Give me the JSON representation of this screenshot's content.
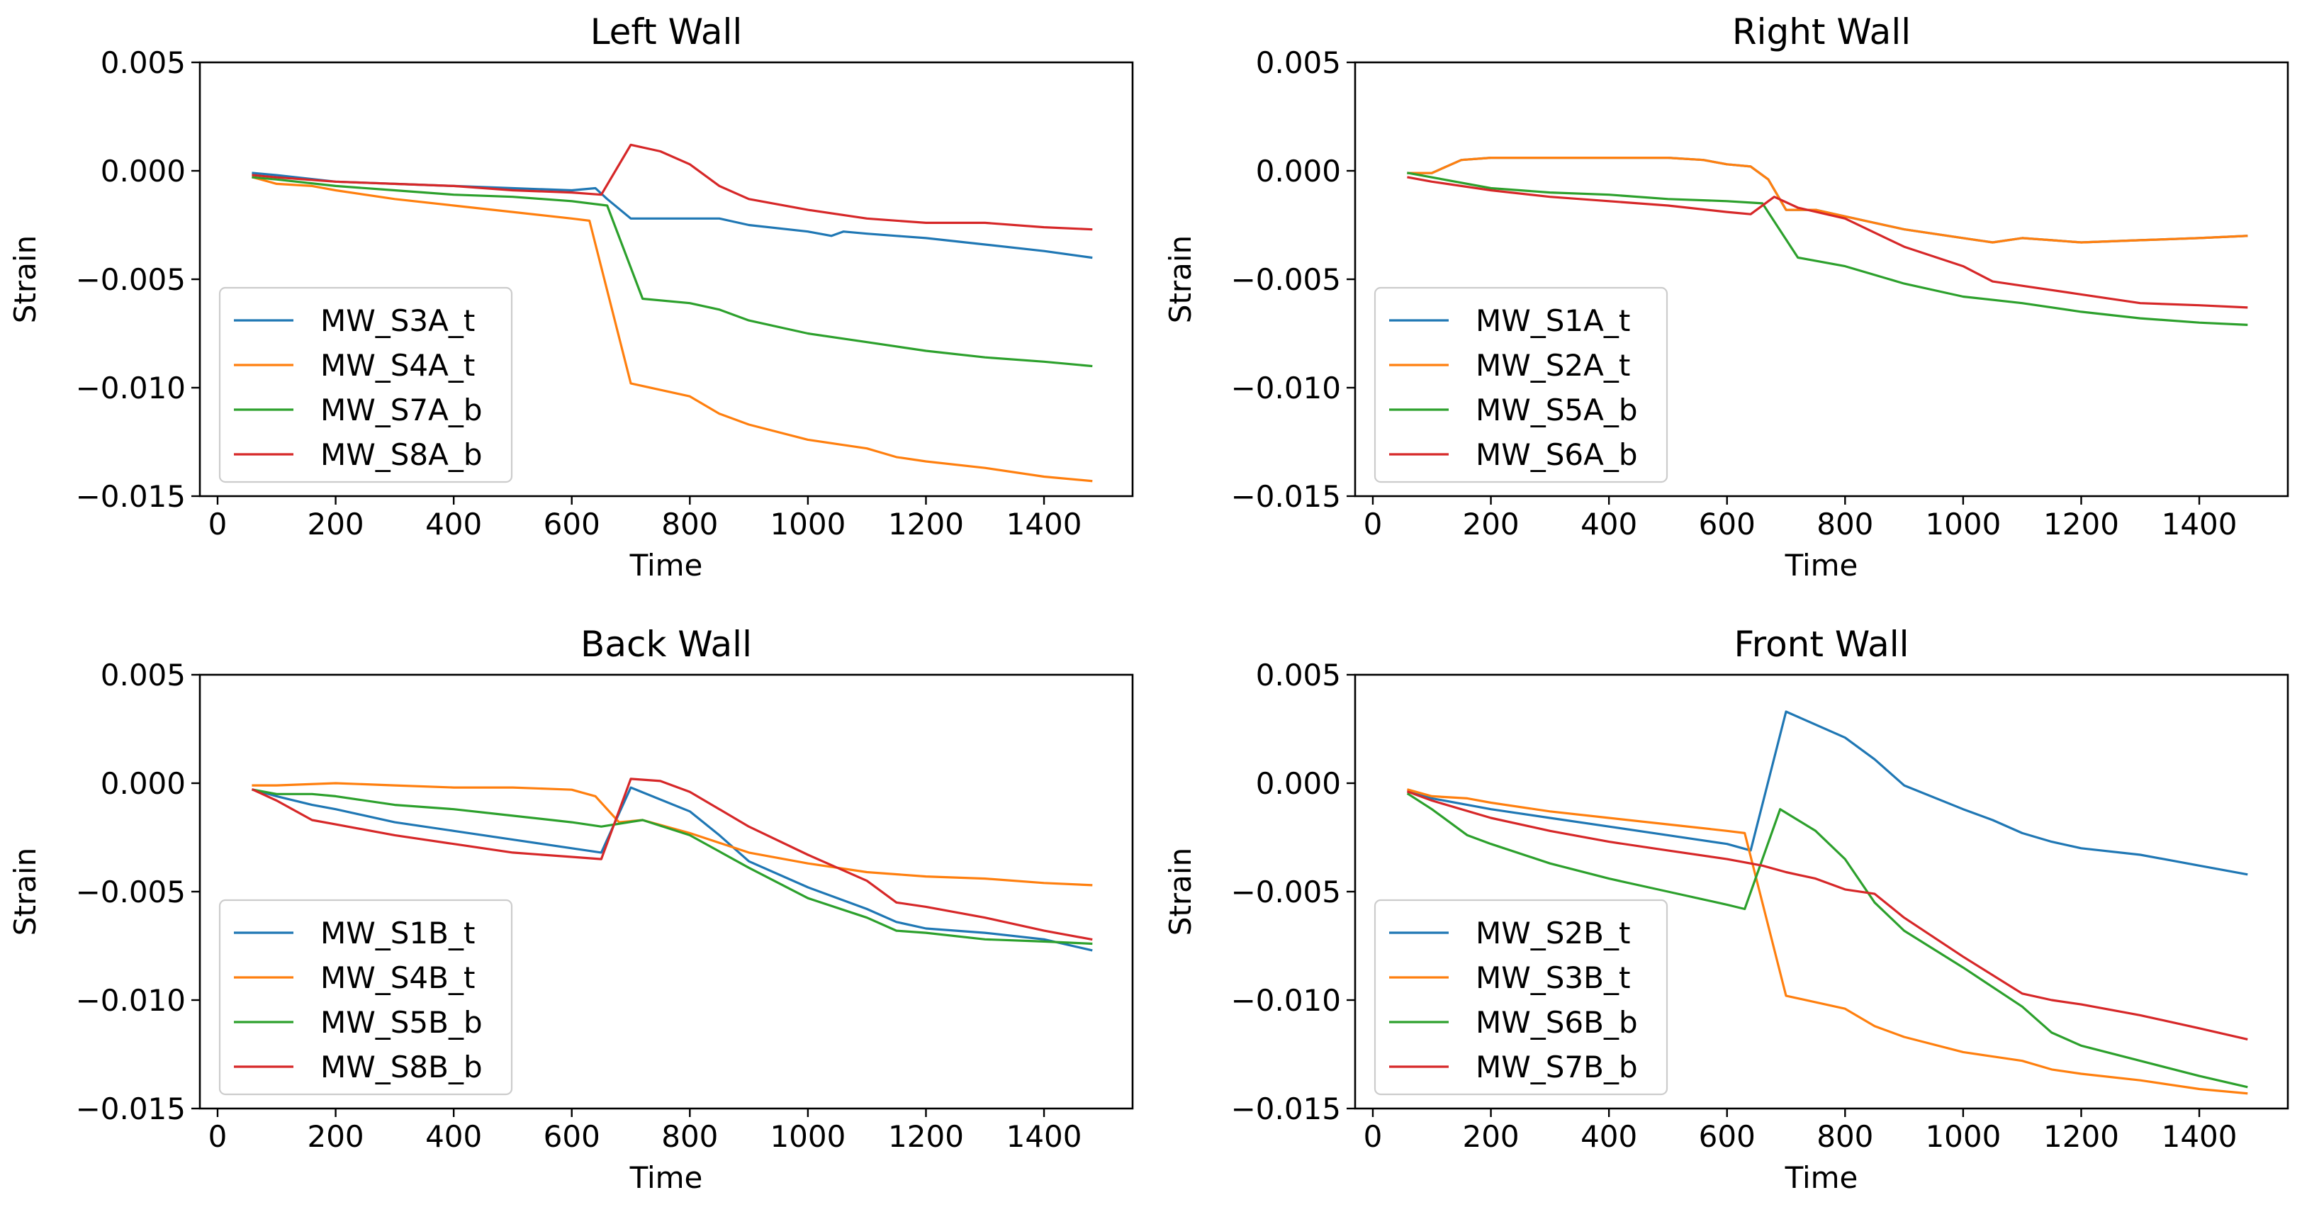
{
  "chart_data": [
    {
      "type": "line",
      "title": "Left Wall",
      "xlabel": "Time",
      "ylabel": "Strain",
      "xlim": [
        -30,
        1550
      ],
      "ylim": [
        -0.015,
        0.005
      ],
      "xticks": [
        0,
        200,
        400,
        600,
        800,
        1000,
        1200,
        1400
      ],
      "xtick_labels": [
        "0",
        "200",
        "400",
        "600",
        "800",
        "1000",
        "1200",
        "1400"
      ],
      "yticks": [
        0.005,
        0.0,
        -0.005,
        -0.01,
        -0.015
      ],
      "ytick_labels": [
        "0.005",
        "0.000",
        "−0.005",
        "−0.010",
        "−0.015"
      ],
      "grid": false,
      "legend_position": "lower-left",
      "series": [
        {
          "name": "MW_S3A_t",
          "color": "#1f77b4",
          "x": [
            60,
            100,
            200,
            300,
            400,
            500,
            600,
            640,
            660,
            700,
            800,
            850,
            900,
            1000,
            1040,
            1060,
            1100,
            1150,
            1200,
            1300,
            1400,
            1480
          ],
          "y": [
            -0.0001,
            -0.0002,
            -0.0005,
            -0.0006,
            -0.0007,
            -0.0008,
            -0.0009,
            -0.0008,
            -0.0013,
            -0.0022,
            -0.0022,
            -0.0022,
            -0.0025,
            -0.0028,
            -0.003,
            -0.0028,
            -0.0029,
            -0.003,
            -0.0031,
            -0.0034,
            -0.0037,
            -0.004
          ]
        },
        {
          "name": "MW_S4A_t",
          "color": "#ff7f0e",
          "x": [
            60,
            100,
            160,
            200,
            300,
            400,
            500,
            600,
            630,
            700,
            800,
            850,
            900,
            1000,
            1050,
            1100,
            1150,
            1200,
            1300,
            1400,
            1480
          ],
          "y": [
            -0.0003,
            -0.0006,
            -0.0007,
            -0.0009,
            -0.0013,
            -0.0016,
            -0.0019,
            -0.0022,
            -0.0023,
            -0.0098,
            -0.0104,
            -0.0112,
            -0.0117,
            -0.0124,
            -0.0126,
            -0.0128,
            -0.0132,
            -0.0134,
            -0.0137,
            -0.0141,
            -0.0143
          ]
        },
        {
          "name": "MW_S7A_b",
          "color": "#2ca02c",
          "x": [
            60,
            100,
            200,
            300,
            400,
            500,
            600,
            660,
            720,
            800,
            850,
            900,
            1000,
            1100,
            1200,
            1300,
            1400,
            1480
          ],
          "y": [
            -0.0003,
            -0.0004,
            -0.0007,
            -0.0009,
            -0.0011,
            -0.0012,
            -0.0014,
            -0.0016,
            -0.0059,
            -0.0061,
            -0.0064,
            -0.0069,
            -0.0075,
            -0.0079,
            -0.0083,
            -0.0086,
            -0.0088,
            -0.009
          ]
        },
        {
          "name": "MW_S8A_b",
          "color": "#d62728",
          "x": [
            60,
            100,
            200,
            300,
            400,
            500,
            600,
            650,
            700,
            750,
            800,
            850,
            900,
            1000,
            1100,
            1200,
            1300,
            1400,
            1480
          ],
          "y": [
            -0.0002,
            -0.0003,
            -0.0005,
            -0.0006,
            -0.0007,
            -0.0009,
            -0.001,
            -0.0011,
            0.0012,
            0.0009,
            0.0003,
            -0.0007,
            -0.0013,
            -0.0018,
            -0.0022,
            -0.0024,
            -0.0024,
            -0.0026,
            -0.0027
          ]
        }
      ]
    },
    {
      "type": "line",
      "title": "Right Wall",
      "xlabel": "Time",
      "ylabel": "Strain",
      "xlim": [
        -30,
        1550
      ],
      "ylim": [
        -0.015,
        0.005
      ],
      "xticks": [
        0,
        200,
        400,
        600,
        800,
        1000,
        1200,
        1400
      ],
      "xtick_labels": [
        "0",
        "200",
        "400",
        "600",
        "800",
        "1000",
        "1200",
        "1400"
      ],
      "yticks": [
        0.005,
        0.0,
        -0.005,
        -0.01,
        -0.015
      ],
      "ytick_labels": [
        "0.005",
        "0.000",
        "−0.005",
        "−0.010",
        "−0.015"
      ],
      "grid": false,
      "legend_position": "lower-left",
      "series": [
        {
          "name": "MW_S1A_t",
          "color": "#1f77b4",
          "x": [
            60,
            100,
            150,
            200,
            300,
            400,
            500,
            560,
            600,
            640,
            670,
            700,
            750,
            800,
            900,
            1000,
            1050,
            1100,
            1150,
            1200,
            1300,
            1400,
            1480
          ],
          "y": [
            -0.0001,
            -0.0001,
            0.0005,
            0.0006,
            0.0006,
            0.0006,
            0.0006,
            0.0005,
            0.0003,
            0.0002,
            -0.0004,
            -0.0018,
            -0.0018,
            -0.0021,
            -0.0027,
            -0.0031,
            -0.0033,
            -0.0031,
            -0.0032,
            -0.0033,
            -0.0032,
            -0.0031,
            -0.003
          ]
        },
        {
          "name": "MW_S2A_t",
          "color": "#ff7f0e",
          "x": [
            60,
            100,
            150,
            200,
            300,
            400,
            500,
            560,
            600,
            640,
            670,
            700,
            750,
            800,
            900,
            1000,
            1050,
            1100,
            1150,
            1200,
            1300,
            1400,
            1480
          ],
          "y": [
            -0.0001,
            -0.0001,
            0.0005,
            0.0006,
            0.0006,
            0.0006,
            0.0006,
            0.0005,
            0.0003,
            0.0002,
            -0.0004,
            -0.0018,
            -0.0018,
            -0.0021,
            -0.0027,
            -0.0031,
            -0.0033,
            -0.0031,
            -0.0032,
            -0.0033,
            -0.0032,
            -0.0031,
            -0.003
          ]
        },
        {
          "name": "MW_S5A_b",
          "color": "#2ca02c",
          "x": [
            60,
            100,
            200,
            300,
            400,
            500,
            600,
            660,
            720,
            800,
            900,
            1000,
            1100,
            1200,
            1300,
            1400,
            1480
          ],
          "y": [
            -0.0001,
            -0.0003,
            -0.0008,
            -0.001,
            -0.0011,
            -0.0013,
            -0.0014,
            -0.0015,
            -0.004,
            -0.0044,
            -0.0052,
            -0.0058,
            -0.0061,
            -0.0065,
            -0.0068,
            -0.007,
            -0.0071
          ]
        },
        {
          "name": "MW_S6A_b",
          "color": "#d62728",
          "x": [
            60,
            100,
            200,
            300,
            400,
            500,
            600,
            640,
            680,
            720,
            800,
            900,
            1000,
            1050,
            1100,
            1200,
            1300,
            1400,
            1480
          ],
          "y": [
            -0.0003,
            -0.0005,
            -0.0009,
            -0.0012,
            -0.0014,
            -0.0016,
            -0.0019,
            -0.002,
            -0.0012,
            -0.0017,
            -0.0022,
            -0.0035,
            -0.0044,
            -0.0051,
            -0.0053,
            -0.0057,
            -0.0061,
            -0.0062,
            -0.0063
          ]
        }
      ]
    },
    {
      "type": "line",
      "title": "Back Wall",
      "xlabel": "Time",
      "ylabel": "Strain",
      "xlim": [
        -30,
        1550
      ],
      "ylim": [
        -0.015,
        0.005
      ],
      "xticks": [
        0,
        200,
        400,
        600,
        800,
        1000,
        1200,
        1400
      ],
      "xtick_labels": [
        "0",
        "200",
        "400",
        "600",
        "800",
        "1000",
        "1200",
        "1400"
      ],
      "yticks": [
        0.005,
        0.0,
        -0.005,
        -0.01,
        -0.015
      ],
      "ytick_labels": [
        "0.005",
        "0.000",
        "−0.005",
        "−0.010",
        "−0.015"
      ],
      "grid": false,
      "legend_position": "lower-left",
      "series": [
        {
          "name": "MW_S1B_t",
          "color": "#1f77b4",
          "x": [
            60,
            100,
            160,
            200,
            300,
            400,
            500,
            600,
            650,
            700,
            800,
            850,
            900,
            1000,
            1100,
            1150,
            1200,
            1300,
            1400,
            1480
          ],
          "y": [
            -0.0003,
            -0.0006,
            -0.001,
            -0.0012,
            -0.0018,
            -0.0022,
            -0.0026,
            -0.003,
            -0.0032,
            -0.0002,
            -0.0013,
            -0.0024,
            -0.0036,
            -0.0048,
            -0.0058,
            -0.0064,
            -0.0067,
            -0.0069,
            -0.0072,
            -0.0077
          ]
        },
        {
          "name": "MW_S4B_t",
          "color": "#ff7f0e",
          "x": [
            60,
            100,
            200,
            300,
            400,
            500,
            600,
            640,
            680,
            720,
            800,
            900,
            1000,
            1100,
            1200,
            1300,
            1400,
            1480
          ],
          "y": [
            -0.0001,
            -0.0001,
            0.0,
            -0.0001,
            -0.0002,
            -0.0002,
            -0.0003,
            -0.0006,
            -0.0018,
            -0.0017,
            -0.0023,
            -0.0032,
            -0.0037,
            -0.0041,
            -0.0043,
            -0.0044,
            -0.0046,
            -0.0047
          ]
        },
        {
          "name": "MW_S5B_b",
          "color": "#2ca02c",
          "x": [
            60,
            100,
            160,
            200,
            300,
            400,
            500,
            600,
            650,
            720,
            800,
            900,
            1000,
            1100,
            1150,
            1200,
            1300,
            1400,
            1480
          ],
          "y": [
            -0.0003,
            -0.0005,
            -0.0005,
            -0.0006,
            -0.001,
            -0.0012,
            -0.0015,
            -0.0018,
            -0.002,
            -0.0017,
            -0.0024,
            -0.0039,
            -0.0053,
            -0.0062,
            -0.0068,
            -0.0069,
            -0.0072,
            -0.0073,
            -0.0074
          ]
        },
        {
          "name": "MW_S8B_b",
          "color": "#d62728",
          "x": [
            60,
            100,
            160,
            200,
            300,
            400,
            500,
            600,
            650,
            700,
            750,
            800,
            850,
            900,
            1000,
            1100,
            1150,
            1200,
            1300,
            1400,
            1480
          ],
          "y": [
            -0.0003,
            -0.0008,
            -0.0017,
            -0.0019,
            -0.0024,
            -0.0028,
            -0.0032,
            -0.0034,
            -0.0035,
            0.0002,
            0.0001,
            -0.0004,
            -0.0012,
            -0.002,
            -0.0033,
            -0.0045,
            -0.0055,
            -0.0057,
            -0.0062,
            -0.0068,
            -0.0072
          ]
        }
      ]
    },
    {
      "type": "line",
      "title": "Front Wall",
      "xlabel": "Time",
      "ylabel": "Strain",
      "xlim": [
        -30,
        1550
      ],
      "ylim": [
        -0.015,
        0.005
      ],
      "xticks": [
        0,
        200,
        400,
        600,
        800,
        1000,
        1200,
        1400
      ],
      "xtick_labels": [
        "0",
        "200",
        "400",
        "600",
        "800",
        "1000",
        "1200",
        "1400"
      ],
      "yticks": [
        0.005,
        0.0,
        -0.005,
        -0.01,
        -0.015
      ],
      "ytick_labels": [
        "0.005",
        "0.000",
        "−0.005",
        "−0.010",
        "−0.015"
      ],
      "grid": false,
      "legend_position": "lower-left",
      "series": [
        {
          "name": "MW_S2B_t",
          "color": "#1f77b4",
          "x": [
            60,
            100,
            200,
            300,
            400,
            500,
            600,
            640,
            700,
            800,
            850,
            900,
            1000,
            1050,
            1100,
            1150,
            1200,
            1300,
            1400,
            1480
          ],
          "y": [
            -0.0004,
            -0.0007,
            -0.0012,
            -0.0016,
            -0.002,
            -0.0024,
            -0.0028,
            -0.0031,
            0.0033,
            0.0021,
            0.0011,
            -0.0001,
            -0.0012,
            -0.0017,
            -0.0023,
            -0.0027,
            -0.003,
            -0.0033,
            -0.0038,
            -0.0042
          ]
        },
        {
          "name": "MW_S3B_t",
          "color": "#ff7f0e",
          "x": [
            60,
            100,
            160,
            200,
            300,
            400,
            500,
            600,
            630,
            700,
            800,
            850,
            900,
            1000,
            1050,
            1100,
            1150,
            1200,
            1300,
            1400,
            1480
          ],
          "y": [
            -0.0003,
            -0.0006,
            -0.0007,
            -0.0009,
            -0.0013,
            -0.0016,
            -0.0019,
            -0.0022,
            -0.0023,
            -0.0098,
            -0.0104,
            -0.0112,
            -0.0117,
            -0.0124,
            -0.0126,
            -0.0128,
            -0.0132,
            -0.0134,
            -0.0137,
            -0.0141,
            -0.0143
          ]
        },
        {
          "name": "MW_S6B_b",
          "color": "#2ca02c",
          "x": [
            60,
            100,
            160,
            200,
            300,
            400,
            500,
            600,
            630,
            690,
            750,
            800,
            850,
            900,
            1000,
            1100,
            1150,
            1200,
            1300,
            1400,
            1480
          ],
          "y": [
            -0.0005,
            -0.0012,
            -0.0024,
            -0.0028,
            -0.0037,
            -0.0044,
            -0.005,
            -0.0056,
            -0.0058,
            -0.0012,
            -0.0022,
            -0.0035,
            -0.0055,
            -0.0068,
            -0.0085,
            -0.0103,
            -0.0115,
            -0.0121,
            -0.0128,
            -0.0135,
            -0.014
          ]
        },
        {
          "name": "MW_S7B_b",
          "color": "#d62728",
          "x": [
            60,
            100,
            200,
            300,
            400,
            500,
            600,
            660,
            700,
            750,
            800,
            850,
            900,
            1000,
            1100,
            1150,
            1200,
            1300,
            1400,
            1480
          ],
          "y": [
            -0.0004,
            -0.0008,
            -0.0016,
            -0.0022,
            -0.0027,
            -0.0031,
            -0.0035,
            -0.0038,
            -0.0041,
            -0.0044,
            -0.0049,
            -0.0051,
            -0.0062,
            -0.008,
            -0.0097,
            -0.01,
            -0.0102,
            -0.0107,
            -0.0113,
            -0.0118
          ]
        }
      ]
    }
  ]
}
